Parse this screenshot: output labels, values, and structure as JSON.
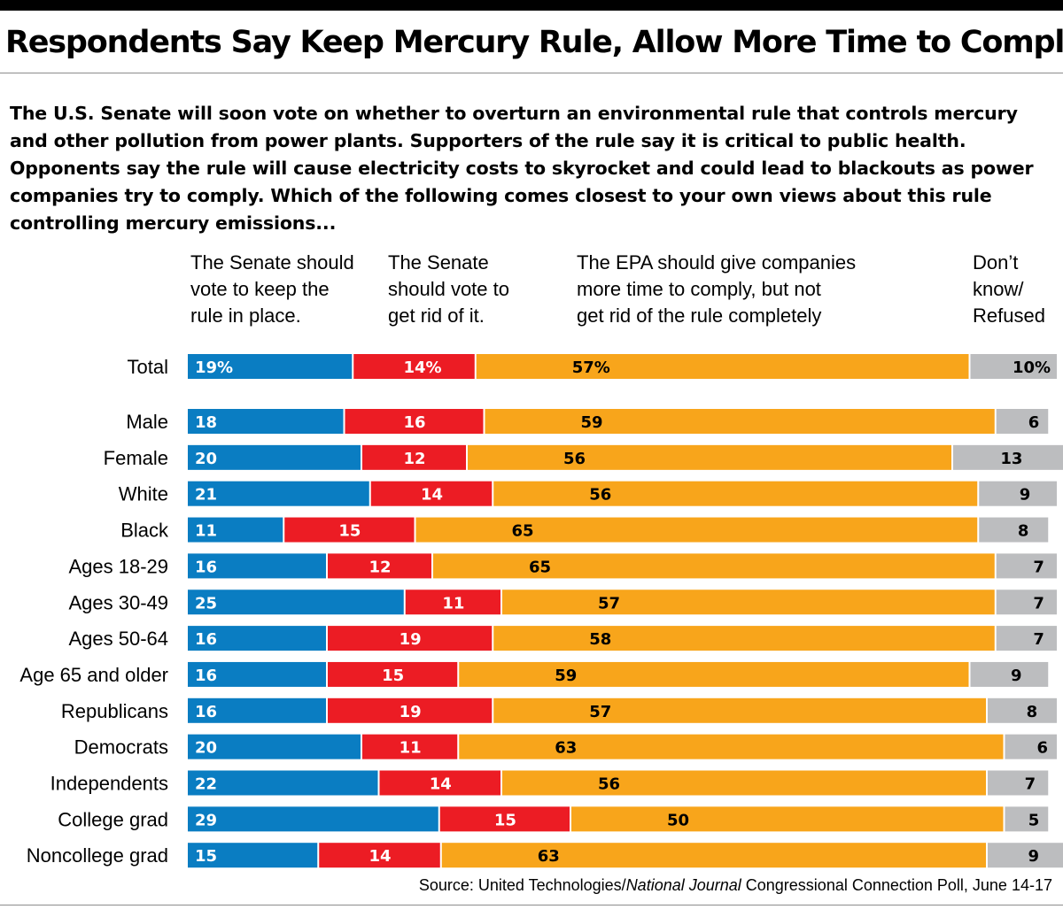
{
  "title": "Respondents Say Keep Mercury Rule, Allow More Time to Comply",
  "question": "The U.S. Senate will soon vote on whether to overturn an environmental rule that controls mercury and other pollution from power plants. Supporters of the rule say it is critical to public health. Opponents say the rule will cause electricity costs to skyrocket and could lead to blackouts as power companies try to comply. Which of the following comes closest to your own views about this rule controlling mercury emissions...",
  "source": {
    "prefix": "Source: United Technologies/",
    "italic": "National Journal",
    "suffix": " Congressional Connection Poll, June 14-17"
  },
  "colors": {
    "keep": "#0a7dc2",
    "rid": "#ec1c24",
    "time": "#f8a51b",
    "dk": "#bcbdbf"
  },
  "chart_data": {
    "type": "bar",
    "orientation": "horizontal",
    "stacked": true,
    "unit": "%",
    "series": [
      {
        "key": "keep",
        "name": "The Senate should vote to keep the rule in place."
      },
      {
        "key": "rid",
        "name": "The Senate should vote to get rid of it."
      },
      {
        "key": "time",
        "name": "The EPA should give companies more time to comply, but not get rid of the rule completely"
      },
      {
        "key": "dk",
        "name": "Don’t know/ Refused"
      }
    ],
    "rows": [
      {
        "label": "Total",
        "values": [
          19,
          14,
          57,
          10
        ],
        "labels": [
          "19%",
          "14%",
          "57%",
          "10%"
        ]
      },
      {
        "label": "Male",
        "values": [
          18,
          16,
          59,
          6
        ],
        "labels": [
          "18",
          "16",
          "59",
          "6"
        ]
      },
      {
        "label": "Female",
        "values": [
          20,
          12,
          56,
          13
        ],
        "labels": [
          "20",
          "12",
          "56",
          "13"
        ]
      },
      {
        "label": "White",
        "values": [
          21,
          14,
          56,
          9
        ],
        "labels": [
          "21",
          "14",
          "56",
          "9"
        ]
      },
      {
        "label": "Black",
        "values": [
          11,
          15,
          65,
          8
        ],
        "labels": [
          "11",
          "15",
          "65",
          "8"
        ]
      },
      {
        "label": "Ages 18-29",
        "values": [
          16,
          12,
          65,
          7
        ],
        "labels": [
          "16",
          "12",
          "65",
          "7"
        ]
      },
      {
        "label": "Ages 30-49",
        "values": [
          25,
          11,
          57,
          7
        ],
        "labels": [
          "25",
          "11",
          "57",
          "7"
        ]
      },
      {
        "label": "Ages 50-64",
        "values": [
          16,
          19,
          58,
          7
        ],
        "labels": [
          "16",
          "19",
          "58",
          "7"
        ]
      },
      {
        "label": "Age 65 and older",
        "values": [
          16,
          15,
          59,
          9
        ],
        "labels": [
          "16",
          "15",
          "59",
          "9"
        ]
      },
      {
        "label": "Republicans",
        "values": [
          16,
          19,
          57,
          8
        ],
        "labels": [
          "16",
          "19",
          "57",
          "8"
        ]
      },
      {
        "label": "Democrats",
        "values": [
          20,
          11,
          63,
          6
        ],
        "labels": [
          "20",
          "11",
          "63",
          "6"
        ]
      },
      {
        "label": "Independents",
        "values": [
          22,
          14,
          56,
          7
        ],
        "labels": [
          "22",
          "14",
          "56",
          "7"
        ]
      },
      {
        "label": "College grad",
        "values": [
          29,
          15,
          50,
          5
        ],
        "labels": [
          "29",
          "15",
          "50",
          "5"
        ]
      },
      {
        "label": "Noncollege grad",
        "values": [
          15,
          14,
          63,
          9
        ],
        "labels": [
          "15",
          "14",
          "63",
          "9"
        ]
      }
    ]
  }
}
